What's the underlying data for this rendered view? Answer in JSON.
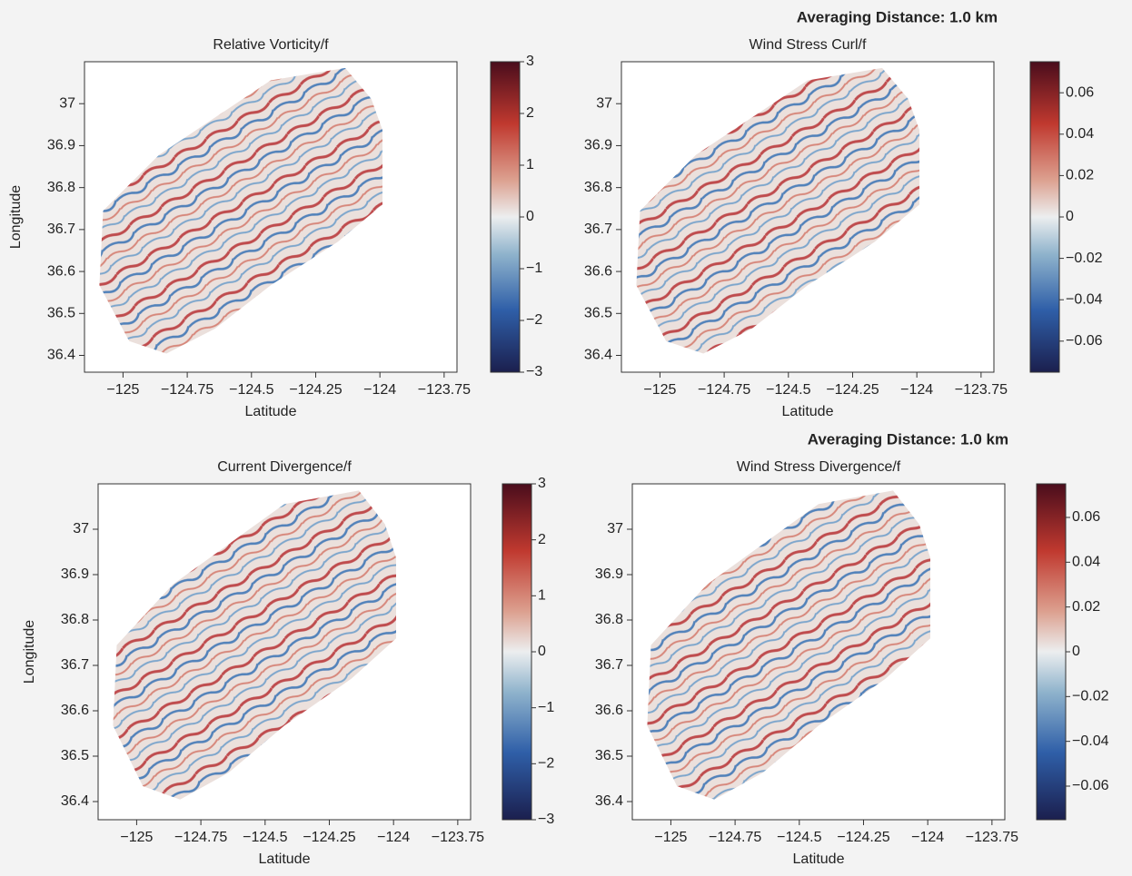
{
  "chart_data": [
    {
      "type": "heatmap",
      "title": "Relative Vorticity/f",
      "xlabel": "Latitude",
      "ylabel": "Longitude",
      "xlim": [
        -125.15,
        -123.7
      ],
      "ylim": [
        36.36,
        37.1
      ],
      "xticks": [
        {
          "value": -125,
          "label": "−125"
        },
        {
          "value": -124.75,
          "label": "−124.75"
        },
        {
          "value": -124.5,
          "label": "−124.5"
        },
        {
          "value": -124.25,
          "label": "−124.25"
        },
        {
          "value": -124,
          "label": "−124"
        },
        {
          "value": -123.75,
          "label": "−123.75"
        }
      ],
      "yticks": [
        36.4,
        36.5,
        36.6,
        36.7,
        36.8,
        36.9,
        37
      ],
      "clim": [
        -3,
        3
      ],
      "cticks": [
        {
          "value": -3,
          "label": "−3"
        },
        {
          "value": -2,
          "label": "−2"
        },
        {
          "value": -1,
          "label": "−1"
        },
        0,
        1,
        2,
        3
      ]
    },
    {
      "type": "heatmap",
      "suptitle": "Averaging Distance: 1.0 km",
      "title": "Wind Stress Curl/f",
      "xlabel": "Latitude",
      "xlim": [
        -125.15,
        -123.7
      ],
      "ylim": [
        36.36,
        37.1
      ],
      "xticks": [
        {
          "value": -125,
          "label": "−125"
        },
        {
          "value": -124.75,
          "label": "−124.75"
        },
        {
          "value": -124.5,
          "label": "−124.5"
        },
        {
          "value": -124.25,
          "label": "−124.25"
        },
        {
          "value": -124,
          "label": "−124"
        },
        {
          "value": -123.75,
          "label": "−123.75"
        }
      ],
      "yticks": [
        36.4,
        36.5,
        36.6,
        36.7,
        36.8,
        36.9,
        37
      ],
      "clim": [
        -0.075,
        0.075
      ],
      "cticks": [
        {
          "value": -0.06,
          "label": "−0.06"
        },
        {
          "value": -0.04,
          "label": "−0.04"
        },
        {
          "value": -0.02,
          "label": "−0.02"
        },
        0,
        0.02,
        0.04,
        0.06
      ]
    },
    {
      "type": "heatmap",
      "title": "Current Divergence/f",
      "xlabel": "Latitude",
      "ylabel": "Longitude",
      "xlim": [
        -125.15,
        -123.7
      ],
      "ylim": [
        36.36,
        37.1
      ],
      "xticks": [
        {
          "value": -125,
          "label": "−125"
        },
        {
          "value": -124.75,
          "label": "−124.75"
        },
        {
          "value": -124.5,
          "label": "−124.5"
        },
        {
          "value": -124.25,
          "label": "−124.25"
        },
        {
          "value": -124,
          "label": "−124"
        },
        {
          "value": -123.75,
          "label": "−123.75"
        }
      ],
      "yticks": [
        36.4,
        36.5,
        36.6,
        36.7,
        36.8,
        36.9,
        37
      ],
      "clim": [
        -3,
        3
      ],
      "cticks": [
        {
          "value": -3,
          "label": "−3"
        },
        {
          "value": -2,
          "label": "−2"
        },
        {
          "value": -1,
          "label": "−1"
        },
        0,
        1,
        2,
        3
      ]
    },
    {
      "type": "heatmap",
      "suptitle": "Averaging Distance: 1.0 km",
      "title": "Wind Stress Divergence/f",
      "xlabel": "Latitude",
      "xlim": [
        -125.15,
        -123.7
      ],
      "ylim": [
        36.36,
        37.1
      ],
      "xticks": [
        {
          "value": -125,
          "label": "−125"
        },
        {
          "value": -124.75,
          "label": "−124.75"
        },
        {
          "value": -124.5,
          "label": "−124.5"
        },
        {
          "value": -124.25,
          "label": "−124.25"
        },
        {
          "value": -124,
          "label": "−124"
        },
        {
          "value": -123.75,
          "label": "−123.75"
        }
      ],
      "yticks": [
        36.4,
        36.5,
        36.6,
        36.7,
        36.8,
        36.9,
        37
      ],
      "clim": [
        -0.075,
        0.075
      ],
      "cticks": [
        {
          "value": -0.06,
          "label": "−0.06"
        },
        {
          "value": -0.04,
          "label": "−0.04"
        },
        {
          "value": -0.02,
          "label": "−0.02"
        },
        0,
        0.02,
        0.04,
        0.06
      ]
    }
  ]
}
